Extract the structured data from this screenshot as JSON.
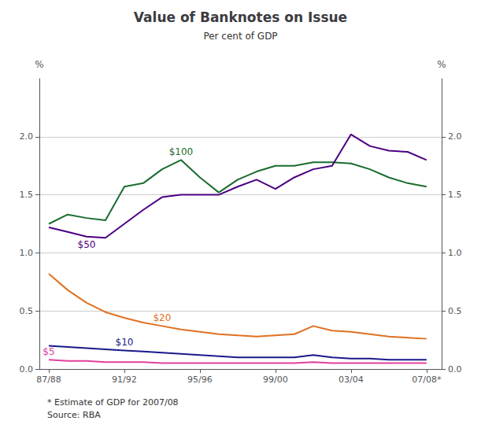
{
  "chart_data": {
    "type": "line",
    "title": "Value of Banknotes on Issue",
    "subtitle": "Per cent of GDP",
    "notes": [
      "* Estimate of GDP for 2007/08",
      "Source: RBA"
    ],
    "ylabel": "%",
    "y2label": "%",
    "x": [
      1987,
      1988,
      1989,
      1990,
      1991,
      1992,
      1993,
      1994,
      1995,
      1996,
      1997,
      1998,
      1999,
      2000,
      2001,
      2002,
      2003,
      2004,
      2005,
      2006,
      2007
    ],
    "xlim": [
      1986.5,
      2007.8
    ],
    "xticks": [
      {
        "value": 1987,
        "label": "87/88"
      },
      {
        "value": 1991,
        "label": "91/92"
      },
      {
        "value": 1995,
        "label": "95/96"
      },
      {
        "value": 1999,
        "label": "99/00"
      },
      {
        "value": 2003,
        "label": "03/04"
      },
      {
        "value": 2007,
        "label": "07/08*"
      }
    ],
    "ylim": [
      0.0,
      2.5
    ],
    "yticks": [
      {
        "value": 0.0,
        "label": "0.0"
      },
      0.5,
      {
        "value": 1.0,
        "label": "1.0"
      },
      1.5,
      {
        "value": 2.0,
        "label": "2.0"
      }
    ],
    "y2lim": [
      0.0,
      2.5
    ],
    "y2ticks": [
      {
        "value": 0.0,
        "label": "0.0"
      },
      0.5,
      {
        "value": 1.0,
        "label": "1.0"
      },
      1.5,
      {
        "value": 2.0,
        "label": "2.0"
      }
    ],
    "grid": true,
    "series": [
      {
        "name": "$100",
        "color": "#1a6b2e",
        "values": [
          1.25,
          1.33,
          1.3,
          1.28,
          1.57,
          1.6,
          1.72,
          1.8,
          1.65,
          1.52,
          1.63,
          1.7,
          1.75,
          1.75,
          1.78,
          1.78,
          1.77,
          1.72,
          1.65,
          1.6,
          1.57
        ]
      },
      {
        "name": "$50",
        "color": "#4b0082",
        "values": [
          1.22,
          1.18,
          1.14,
          1.13,
          1.25,
          1.37,
          1.48,
          1.5,
          1.5,
          1.5,
          1.57,
          1.63,
          1.55,
          1.65,
          1.72,
          1.75,
          2.02,
          1.92,
          1.88,
          1.87,
          1.8
        ]
      },
      {
        "name": "$20",
        "color": "#e07020",
        "values": [
          0.82,
          0.68,
          0.57,
          0.49,
          0.44,
          0.4,
          0.37,
          0.34,
          0.32,
          0.3,
          0.29,
          0.28,
          0.29,
          0.3,
          0.37,
          0.33,
          0.32,
          0.3,
          0.28,
          0.27,
          0.26
        ]
      },
      {
        "name": "$10",
        "color": "#1a1a8c",
        "values": [
          0.2,
          0.19,
          0.18,
          0.17,
          0.16,
          0.15,
          0.14,
          0.13,
          0.12,
          0.11,
          0.1,
          0.1,
          0.1,
          0.1,
          0.12,
          0.1,
          0.09,
          0.09,
          0.08,
          0.08,
          0.08
        ]
      },
      {
        "name": "$5",
        "color": "#e0409a",
        "values": [
          0.08,
          0.07,
          0.07,
          0.06,
          0.06,
          0.06,
          0.05,
          0.05,
          0.05,
          0.05,
          0.05,
          0.05,
          0.05,
          0.05,
          0.06,
          0.05,
          0.05,
          0.05,
          0.05,
          0.05,
          0.05
        ]
      }
    ]
  }
}
